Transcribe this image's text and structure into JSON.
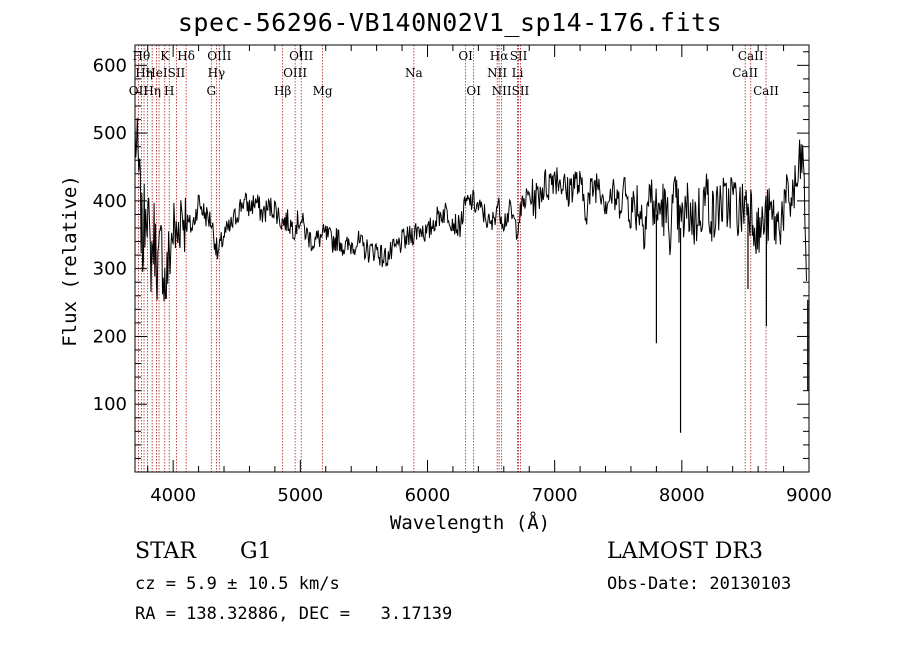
{
  "chart_data": {
    "type": "line",
    "title": "spec-56296-VB140N02V1_sp14-176.fits",
    "xlabel": "Wavelength (Å)",
    "ylabel": "Flux (relative)",
    "xlim": [
      3700,
      9000
    ],
    "ylim": [
      0,
      630
    ],
    "xticks": [
      4000,
      5000,
      6000,
      7000,
      8000,
      9000
    ],
    "yticks": [
      100,
      200,
      300,
      400,
      500,
      600
    ],
    "series": [
      {
        "name": "flux",
        "x": [
          3700,
          3730,
          3760,
          3790,
          3820,
          3850,
          3880,
          3910,
          3940,
          3970,
          4000,
          4030,
          4060,
          4100,
          4150,
          4200,
          4250,
          4300,
          4350,
          4400,
          4450,
          4500,
          4550,
          4600,
          4650,
          4700,
          4750,
          4800,
          4850,
          4900,
          4950,
          5000,
          5050,
          5100,
          5150,
          5200,
          5250,
          5300,
          5350,
          5400,
          5450,
          5500,
          5550,
          5600,
          5650,
          5700,
          5750,
          5800,
          5850,
          5900,
          5950,
          6000,
          6050,
          6100,
          6150,
          6200,
          6250,
          6300,
          6350,
          6400,
          6450,
          6500,
          6550,
          6600,
          6650,
          6700,
          6750,
          6800,
          6850,
          6900,
          6950,
          7000,
          7050,
          7100,
          7150,
          7200,
          7250,
          7300,
          7350,
          7400,
          7450,
          7500,
          7550,
          7600,
          7650,
          7700,
          7750,
          7800,
          7850,
          7900,
          7950,
          7990,
          8050,
          8100,
          8150,
          8200,
          8250,
          8300,
          8350,
          8400,
          8450,
          8500,
          8550,
          8600,
          8650,
          8700,
          8750,
          8800,
          8850,
          8900,
          8950,
          9000
        ],
        "values": [
          500,
          440,
          330,
          420,
          310,
          350,
          300,
          330,
          270,
          320,
          360,
          340,
          390,
          370,
          360,
          400,
          380,
          370,
          320,
          350,
          360,
          380,
          400,
          390,
          400,
          380,
          390,
          390,
          370,
          370,
          360,
          375,
          350,
          340,
          345,
          350,
          340,
          345,
          330,
          335,
          340,
          330,
          325,
          330,
          315,
          320,
          330,
          340,
          345,
          355,
          360,
          350,
          370,
          380,
          385,
          370,
          360,
          395,
          400,
          390,
          380,
          360,
          395,
          370,
          385,
          360,
          395,
          410,
          400,
          420,
          425,
          440,
          430,
          410,
          430,
          420,
          390,
          420,
          430,
          400,
          410,
          395,
          420,
          380,
          400,
          370,
          410,
          380,
          395,
          360,
          400,
          360,
          390,
          370,
          390,
          410,
          370,
          400,
          390,
          410,
          380,
          400,
          390,
          350,
          370,
          380,
          360,
          390,
          400,
          420,
          470,
          200
        ]
      }
    ],
    "spikes": [
      {
        "x": 7800,
        "value": 190
      },
      {
        "x": 7990,
        "value": 58
      },
      {
        "x": 8520,
        "value": 270
      },
      {
        "x": 8665,
        "value": 215
      },
      {
        "x": 8990,
        "value": 120
      }
    ],
    "lines": [
      {
        "x": 3727,
        "label": "OII",
        "row": 2
      },
      {
        "x": 3750,
        "label": "Hθ",
        "row": 0
      },
      {
        "x": 3771,
        "label": "Hη",
        "row": 1
      },
      {
        "x": 3798,
        "label": "",
        "row": -1
      },
      {
        "x": 3835,
        "label": "Hη",
        "row": 2
      },
      {
        "x": 3869,
        "label": "HeI",
        "row": 1
      },
      {
        "x": 3889,
        "label": "",
        "row": -1
      },
      {
        "x": 3934,
        "label": "K",
        "row": 0
      },
      {
        "x": 3969,
        "label": "H",
        "row": 2
      },
      {
        "x": 4026,
        "label": "SII",
        "row": 1
      },
      {
        "x": 4102,
        "label": "Hδ",
        "row": 0
      },
      {
        "x": 4300,
        "label": "G",
        "row": 2
      },
      {
        "x": 4340,
        "label": "Hγ",
        "row": 1
      },
      {
        "x": 4363,
        "label": "OIII",
        "row": 0
      },
      {
        "x": 4861,
        "label": "Hβ",
        "row": 2
      },
      {
        "x": 4959,
        "label": "OIII",
        "row": 1
      },
      {
        "x": 5007,
        "label": "OIII",
        "row": 0
      },
      {
        "x": 5175,
        "label": "Mg",
        "row": 2
      },
      {
        "x": 5893,
        "label": "Na",
        "row": 1
      },
      {
        "x": 6300,
        "label": "OI",
        "row": 0
      },
      {
        "x": 6363,
        "label": "OI",
        "row": 2
      },
      {
        "x": 6548,
        "label": "NII",
        "row": 1
      },
      {
        "x": 6563,
        "label": "Hα",
        "row": 0
      },
      {
        "x": 6583,
        "label": "NII",
        "row": 2
      },
      {
        "x": 6708,
        "label": "Li",
        "row": 1
      },
      {
        "x": 6716,
        "label": "SII",
        "row": 0
      },
      {
        "x": 6731,
        "label": "SII",
        "row": 2
      },
      {
        "x": 8498,
        "label": "CaII",
        "row": 1
      },
      {
        "x": 8542,
        "label": "CaII",
        "row": 0
      },
      {
        "x": 8662,
        "label": "CaII",
        "row": 2
      }
    ]
  },
  "info": {
    "class": "STAR",
    "subclass": "G1",
    "cz": "cz = 5.9 ± 10.5 km/s",
    "radec": "RA = 138.32886, DEC =   3.17139",
    "survey": "LAMOST DR3",
    "obs_date": "Obs-Date: 20130103"
  }
}
